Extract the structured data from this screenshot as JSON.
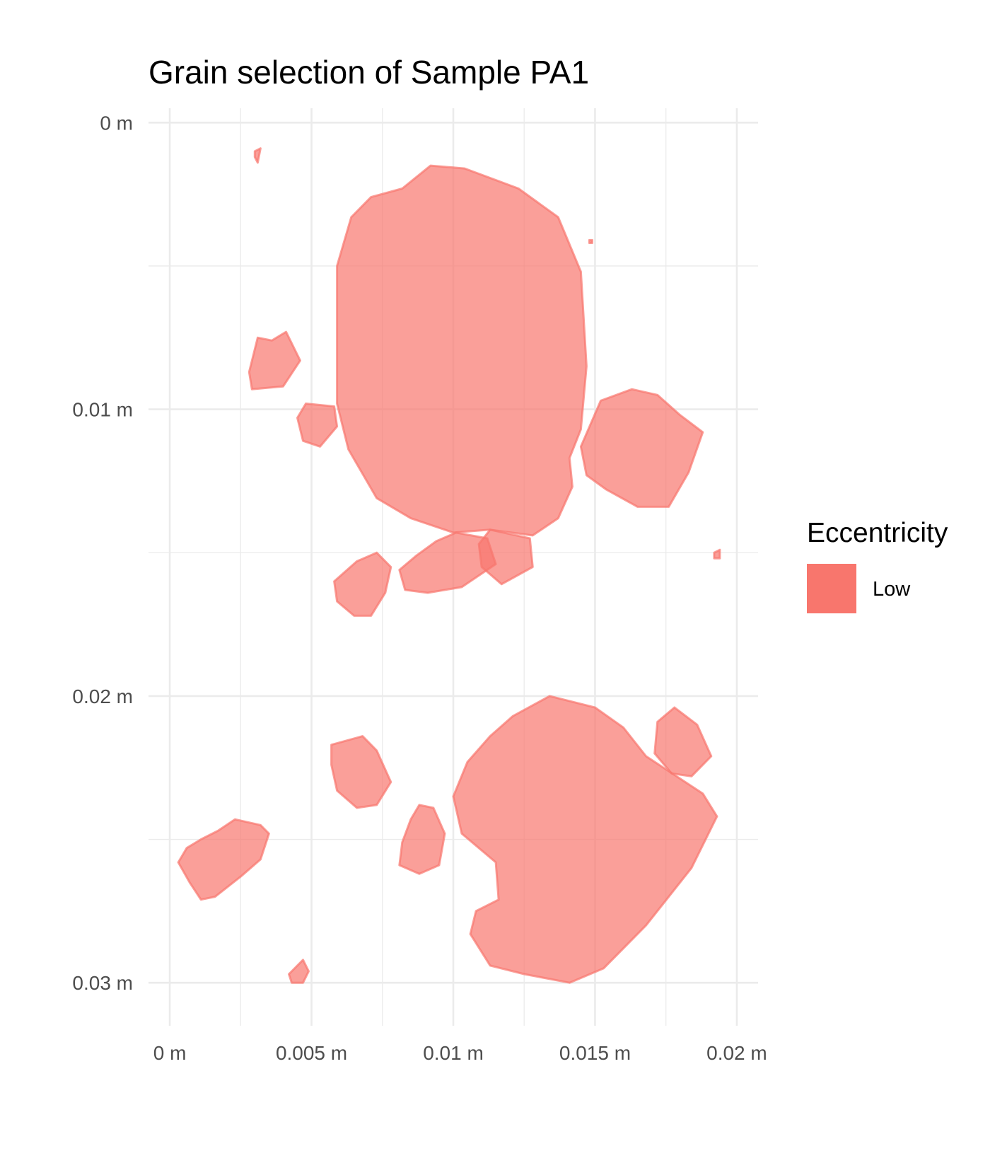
{
  "chart_data": {
    "type": "map",
    "title": "Grain selection of Sample PA1",
    "xlabel": "",
    "ylabel": "",
    "x_ticks": [
      "0 m",
      "0.005 m",
      "0.01 m",
      "0.015 m",
      "0.02 m"
    ],
    "y_ticks": [
      "0 m",
      "0.01 m",
      "0.02 m",
      "0.03 m"
    ],
    "x_tick_values": [
      0,
      0.005,
      0.01,
      0.015,
      0.02
    ],
    "y_tick_values": [
      0,
      0.01,
      0.02,
      0.03
    ],
    "xlim": [
      -0.00075,
      0.02075
    ],
    "ylim": [
      0.0315,
      -0.0005
    ],
    "y_reversed": true,
    "grid": true,
    "legend": {
      "title": "Eccentricity",
      "position": "right",
      "entries": [
        {
          "label": "Low",
          "color": "#F8766D"
        }
      ]
    },
    "fill_color": "#F8766D",
    "fill_opacity": 0.7,
    "grains": [
      {
        "eccentricity": "Low",
        "polygon": [
          [
            0.003,
            0.001
          ],
          [
            0.0032,
            0.0009
          ],
          [
            0.0031,
            0.0014
          ],
          [
            0.003,
            0.0012
          ]
        ]
      },
      {
        "eccentricity": "Low",
        "polygon": [
          [
            0.0082,
            0.0023
          ],
          [
            0.0092,
            0.0015
          ],
          [
            0.0104,
            0.0016
          ],
          [
            0.0123,
            0.0023
          ],
          [
            0.0137,
            0.0033
          ],
          [
            0.0145,
            0.0052
          ],
          [
            0.0147,
            0.0085
          ],
          [
            0.0145,
            0.0107
          ],
          [
            0.0141,
            0.0117
          ],
          [
            0.0142,
            0.0127
          ],
          [
            0.0137,
            0.0138
          ],
          [
            0.0128,
            0.0144
          ],
          [
            0.0113,
            0.0142
          ],
          [
            0.01,
            0.0143
          ],
          [
            0.0085,
            0.0138
          ],
          [
            0.0073,
            0.0131
          ],
          [
            0.0063,
            0.0114
          ],
          [
            0.0059,
            0.0098
          ],
          [
            0.0059,
            0.0075
          ],
          [
            0.0059,
            0.005
          ],
          [
            0.0064,
            0.0033
          ],
          [
            0.0071,
            0.0026
          ]
        ]
      },
      {
        "eccentricity": "Low",
        "polygon": [
          [
            0.0036,
            0.0076
          ],
          [
            0.0041,
            0.0073
          ],
          [
            0.0046,
            0.0083
          ],
          [
            0.004,
            0.0092
          ],
          [
            0.0029,
            0.0093
          ],
          [
            0.0028,
            0.0087
          ],
          [
            0.0031,
            0.0075
          ]
        ]
      },
      {
        "eccentricity": "Low",
        "polygon": [
          [
            0.0048,
            0.0098
          ],
          [
            0.0058,
            0.0099
          ],
          [
            0.0059,
            0.0106
          ],
          [
            0.0053,
            0.0113
          ],
          [
            0.0047,
            0.0111
          ],
          [
            0.0045,
            0.0103
          ]
        ]
      },
      {
        "eccentricity": "Low",
        "polygon": [
          [
            0.0152,
            0.0097
          ],
          [
            0.0163,
            0.0093
          ],
          [
            0.0172,
            0.0095
          ],
          [
            0.018,
            0.0102
          ],
          [
            0.0188,
            0.0108
          ],
          [
            0.0183,
            0.0122
          ],
          [
            0.0176,
            0.0134
          ],
          [
            0.0165,
            0.0134
          ],
          [
            0.0154,
            0.0128
          ],
          [
            0.0147,
            0.0123
          ],
          [
            0.0145,
            0.0113
          ]
        ]
      },
      {
        "eccentricity": "Low",
        "polygon": [
          [
            0.0113,
            0.0142
          ],
          [
            0.0127,
            0.0145
          ],
          [
            0.0128,
            0.0155
          ],
          [
            0.0117,
            0.0161
          ],
          [
            0.011,
            0.0155
          ],
          [
            0.0109,
            0.0147
          ]
        ]
      },
      {
        "eccentricity": "Low",
        "polygon": [
          [
            0.0101,
            0.0143
          ],
          [
            0.0112,
            0.0145
          ],
          [
            0.0115,
            0.0154
          ],
          [
            0.0103,
            0.0162
          ],
          [
            0.0091,
            0.0164
          ],
          [
            0.0083,
            0.0163
          ],
          [
            0.0081,
            0.0156
          ],
          [
            0.0087,
            0.0151
          ],
          [
            0.0094,
            0.0146
          ]
        ]
      },
      {
        "eccentricity": "Low",
        "polygon": [
          [
            0.0066,
            0.0153
          ],
          [
            0.0073,
            0.015
          ],
          [
            0.0078,
            0.0155
          ],
          [
            0.0076,
            0.0164
          ],
          [
            0.0071,
            0.0172
          ],
          [
            0.0065,
            0.0172
          ],
          [
            0.0059,
            0.0167
          ],
          [
            0.0058,
            0.016
          ]
        ]
      },
      {
        "eccentricity": "Low",
        "polygon": [
          [
            0.0192,
            0.015
          ],
          [
            0.0194,
            0.0149
          ],
          [
            0.0194,
            0.0152
          ],
          [
            0.0192,
            0.0152
          ]
        ]
      },
      {
        "eccentricity": "Low",
        "polygon": [
          [
            0.0134,
            0.02
          ],
          [
            0.015,
            0.0204
          ],
          [
            0.016,
            0.0211
          ],
          [
            0.0168,
            0.0221
          ],
          [
            0.0188,
            0.0234
          ],
          [
            0.0193,
            0.0242
          ],
          [
            0.0184,
            0.026
          ],
          [
            0.0168,
            0.028
          ],
          [
            0.0153,
            0.0295
          ],
          [
            0.0141,
            0.03
          ],
          [
            0.0125,
            0.0297
          ],
          [
            0.0113,
            0.0294
          ],
          [
            0.0106,
            0.0283
          ],
          [
            0.0108,
            0.0275
          ],
          [
            0.0116,
            0.0271
          ],
          [
            0.0115,
            0.0258
          ],
          [
            0.0103,
            0.0248
          ],
          [
            0.01,
            0.0235
          ],
          [
            0.0105,
            0.0223
          ],
          [
            0.0113,
            0.0214
          ],
          [
            0.0121,
            0.0207
          ]
        ]
      },
      {
        "eccentricity": "Low",
        "polygon": [
          [
            0.0178,
            0.0204
          ],
          [
            0.0186,
            0.021
          ],
          [
            0.0191,
            0.0221
          ],
          [
            0.0184,
            0.0228
          ],
          [
            0.0177,
            0.0227
          ],
          [
            0.0171,
            0.022
          ],
          [
            0.0172,
            0.0209
          ]
        ]
      },
      {
        "eccentricity": "Low",
        "polygon": [
          [
            0.0057,
            0.0217
          ],
          [
            0.0068,
            0.0214
          ],
          [
            0.0073,
            0.0219
          ],
          [
            0.0078,
            0.023
          ],
          [
            0.0073,
            0.0238
          ],
          [
            0.0066,
            0.0239
          ],
          [
            0.0059,
            0.0233
          ],
          [
            0.0057,
            0.0224
          ]
        ]
      },
      {
        "eccentricity": "Low",
        "polygon": [
          [
            0.0088,
            0.0238
          ],
          [
            0.0093,
            0.0239
          ],
          [
            0.0097,
            0.0248
          ],
          [
            0.0095,
            0.0259
          ],
          [
            0.0088,
            0.0262
          ],
          [
            0.0081,
            0.0259
          ],
          [
            0.0082,
            0.0251
          ],
          [
            0.0085,
            0.0243
          ]
        ]
      },
      {
        "eccentricity": "Low",
        "polygon": [
          [
            0.0017,
            0.0247
          ],
          [
            0.0023,
            0.0243
          ],
          [
            0.0032,
            0.0245
          ],
          [
            0.0035,
            0.0248
          ],
          [
            0.0032,
            0.0257
          ],
          [
            0.0025,
            0.0263
          ],
          [
            0.0016,
            0.027
          ],
          [
            0.0011,
            0.0271
          ],
          [
            0.0007,
            0.0265
          ],
          [
            0.0003,
            0.0258
          ],
          [
            0.0006,
            0.0253
          ],
          [
            0.0011,
            0.025
          ]
        ]
      },
      {
        "eccentricity": "Low",
        "polygon": [
          [
            0.0047,
            0.0292
          ],
          [
            0.0049,
            0.0296
          ],
          [
            0.0047,
            0.03
          ],
          [
            0.0043,
            0.03
          ],
          [
            0.0042,
            0.0297
          ]
        ]
      },
      {
        "eccentricity": "Low",
        "polygon": [
          [
            0.0148,
            0.0041
          ],
          [
            0.0149,
            0.0041
          ],
          [
            0.0149,
            0.0042
          ],
          [
            0.0148,
            0.0042
          ]
        ]
      }
    ]
  }
}
